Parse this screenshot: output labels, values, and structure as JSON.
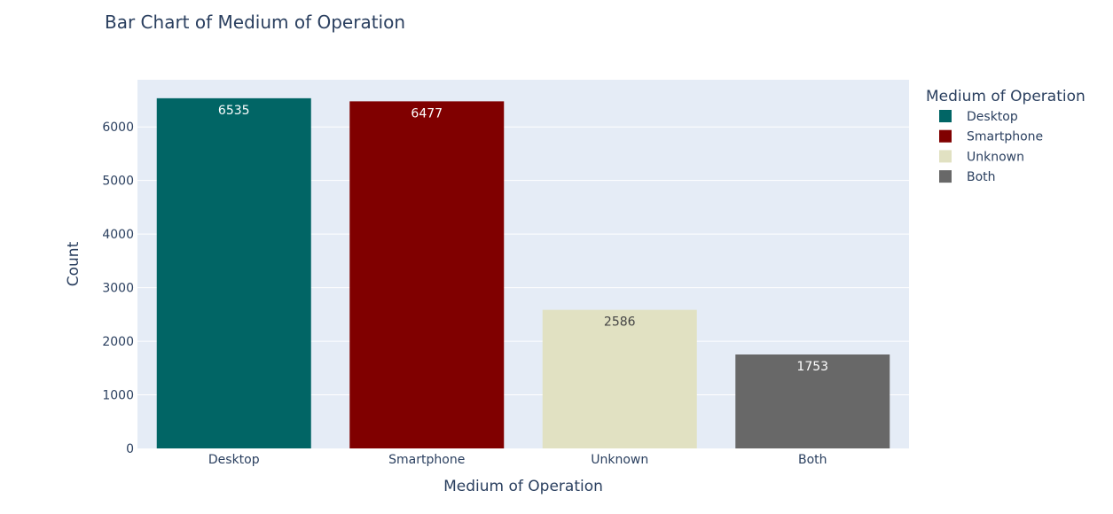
{
  "chart_data": {
    "type": "bar",
    "title": "Bar Chart of Medium of Operation",
    "xlabel": "Medium of Operation",
    "ylabel": "Count",
    "categories": [
      "Desktop",
      "Smartphone",
      "Unknown",
      "Both"
    ],
    "values": [
      6535,
      6477,
      2586,
      1753
    ],
    "colors": [
      "#016565",
      "#800000",
      "#e1e1c2",
      "#686868"
    ],
    "label_colors": [
      "#ffffff",
      "#ffffff",
      "#444444",
      "#ffffff"
    ],
    "ylim": [
      0,
      6880
    ],
    "yticks": [
      0,
      1000,
      2000,
      3000,
      4000,
      5000,
      6000
    ],
    "grid": true,
    "legend": {
      "title": "Medium of Operation",
      "placement": "top-right",
      "entries": [
        "Desktop",
        "Smartphone",
        "Unknown",
        "Both"
      ]
    },
    "plot_background": "#e5ecf6"
  }
}
